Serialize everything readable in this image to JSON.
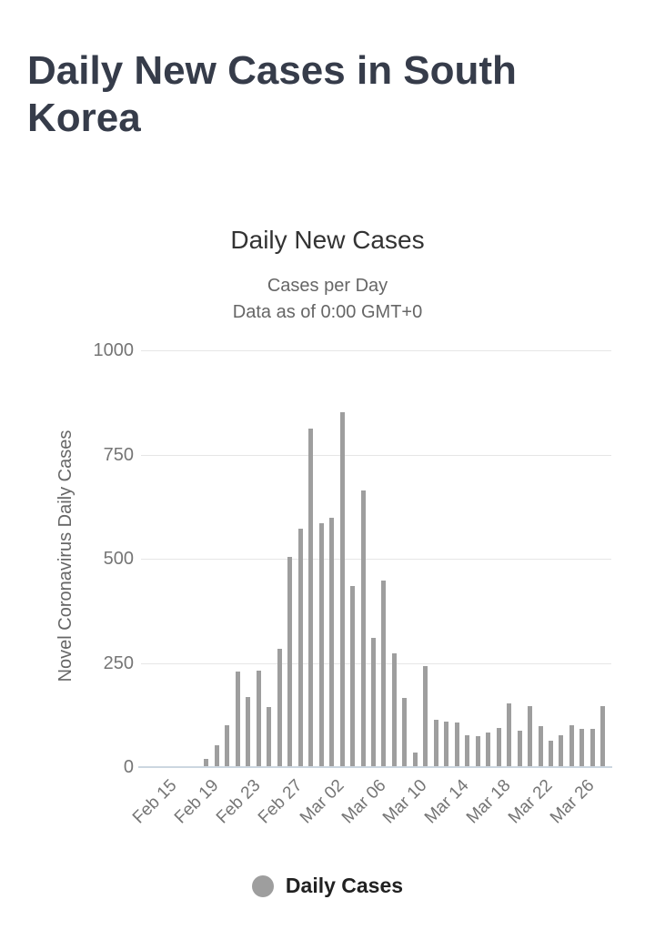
{
  "page": {
    "title": "Daily New Cases in South Korea"
  },
  "chart": {
    "title": "Daily New Cases",
    "subtitle_line1": "Cases per Day",
    "subtitle_line2": "Data as of 0:00 GMT+0",
    "y_axis_title": "Novel Coronavirus Daily Cases",
    "y_ticks": [
      1000,
      750,
      500,
      250,
      0
    ],
    "x_tick_labels": [
      "Feb 15",
      "Feb 19",
      "Feb 23",
      "Feb 27",
      "Mar 02",
      "Mar 06",
      "Mar 10",
      "Mar 14",
      "Mar 18",
      "Mar 22",
      "Mar 26"
    ],
    "legend": {
      "label": "Daily Cases",
      "marker_color": "#9e9e9e"
    },
    "colors": {
      "page_title": "#363c4a",
      "chart_title": "#333333",
      "subtitle": "#666666",
      "axis_label": "#757575",
      "bar": "#9e9e9e",
      "gridline": "#e6e6e6",
      "axis_line": "#ccd6e0",
      "legend_text": "#212121",
      "background": "#ffffff"
    }
  },
  "chart_data": {
    "type": "bar",
    "title": "Daily New Cases",
    "subtitle": "Cases per Day — Data as of 0:00 GMT+0",
    "series_name": "Daily Cases",
    "xlabel": "",
    "ylabel": "Novel Coronavirus Daily Cases",
    "ylim": [
      0,
      1000
    ],
    "y_tick_step": 250,
    "grid": true,
    "legend_position": "bottom",
    "x_tick_interval": 4,
    "bar_color": "#9e9e9e",
    "categories": [
      "Feb 15",
      "Feb 16",
      "Feb 17",
      "Feb 18",
      "Feb 19",
      "Feb 20",
      "Feb 21",
      "Feb 22",
      "Feb 23",
      "Feb 24",
      "Feb 25",
      "Feb 26",
      "Feb 27",
      "Feb 28",
      "Feb 29",
      "Mar 01",
      "Mar 02",
      "Mar 03",
      "Mar 04",
      "Mar 05",
      "Mar 06",
      "Mar 07",
      "Mar 08",
      "Mar 09",
      "Mar 10",
      "Mar 11",
      "Mar 12",
      "Mar 13",
      "Mar 14",
      "Mar 15",
      "Mar 16",
      "Mar 17",
      "Mar 18",
      "Mar 19",
      "Mar 20",
      "Mar 21",
      "Mar 22",
      "Mar 23",
      "Mar 24",
      "Mar 25",
      "Mar 26",
      "Mar 27",
      "Mar 28"
    ],
    "values": [
      0,
      1,
      1,
      1,
      20,
      53,
      100,
      229,
      169,
      231,
      144,
      284,
      505,
      571,
      813,
      586,
      599,
      851,
      435,
      663,
      309,
      448,
      272,
      165,
      35,
      242,
      114,
      110,
      107,
      76,
      74,
      84,
      93,
      152,
      87,
      147,
      98,
      64,
      76,
      100,
      91,
      91,
      146
    ]
  }
}
